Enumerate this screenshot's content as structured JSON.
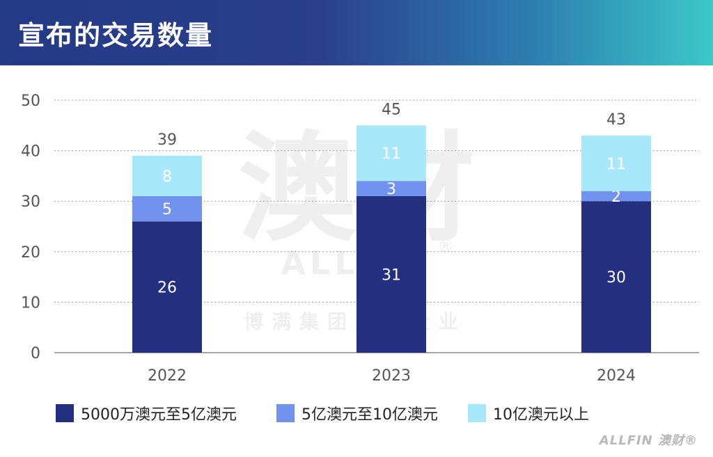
{
  "header": {
    "title": "宣布的交易数量"
  },
  "colors": {
    "series": [
      "#24307f",
      "#7192ee",
      "#a8e8fb"
    ],
    "grid": "#9a9a9a",
    "axis_text": "#555555"
  },
  "watermark": {
    "chars": "澳财",
    "text": "ALLFIN",
    "sub": "博满集团旗下企业",
    "mark": "®"
  },
  "brand": {
    "text": "ALLFIN 澳财",
    "mark": "®"
  },
  "chart_data": {
    "type": "bar",
    "stacked": true,
    "categories": [
      "2022",
      "2023",
      "2024"
    ],
    "ylim": [
      0,
      50
    ],
    "yticks": [
      0,
      10,
      20,
      30,
      40,
      50
    ],
    "grid": true,
    "legend_position": "bottom",
    "series": [
      {
        "name": "5000万澳元至5亿澳元",
        "values": [
          26,
          31,
          30
        ]
      },
      {
        "name": "5亿澳元至10亿澳元",
        "values": [
          5,
          3,
          2
        ]
      },
      {
        "name": "10亿澳元以上",
        "values": [
          8,
          11,
          11
        ]
      }
    ],
    "totals": [
      39,
      45,
      43
    ]
  }
}
